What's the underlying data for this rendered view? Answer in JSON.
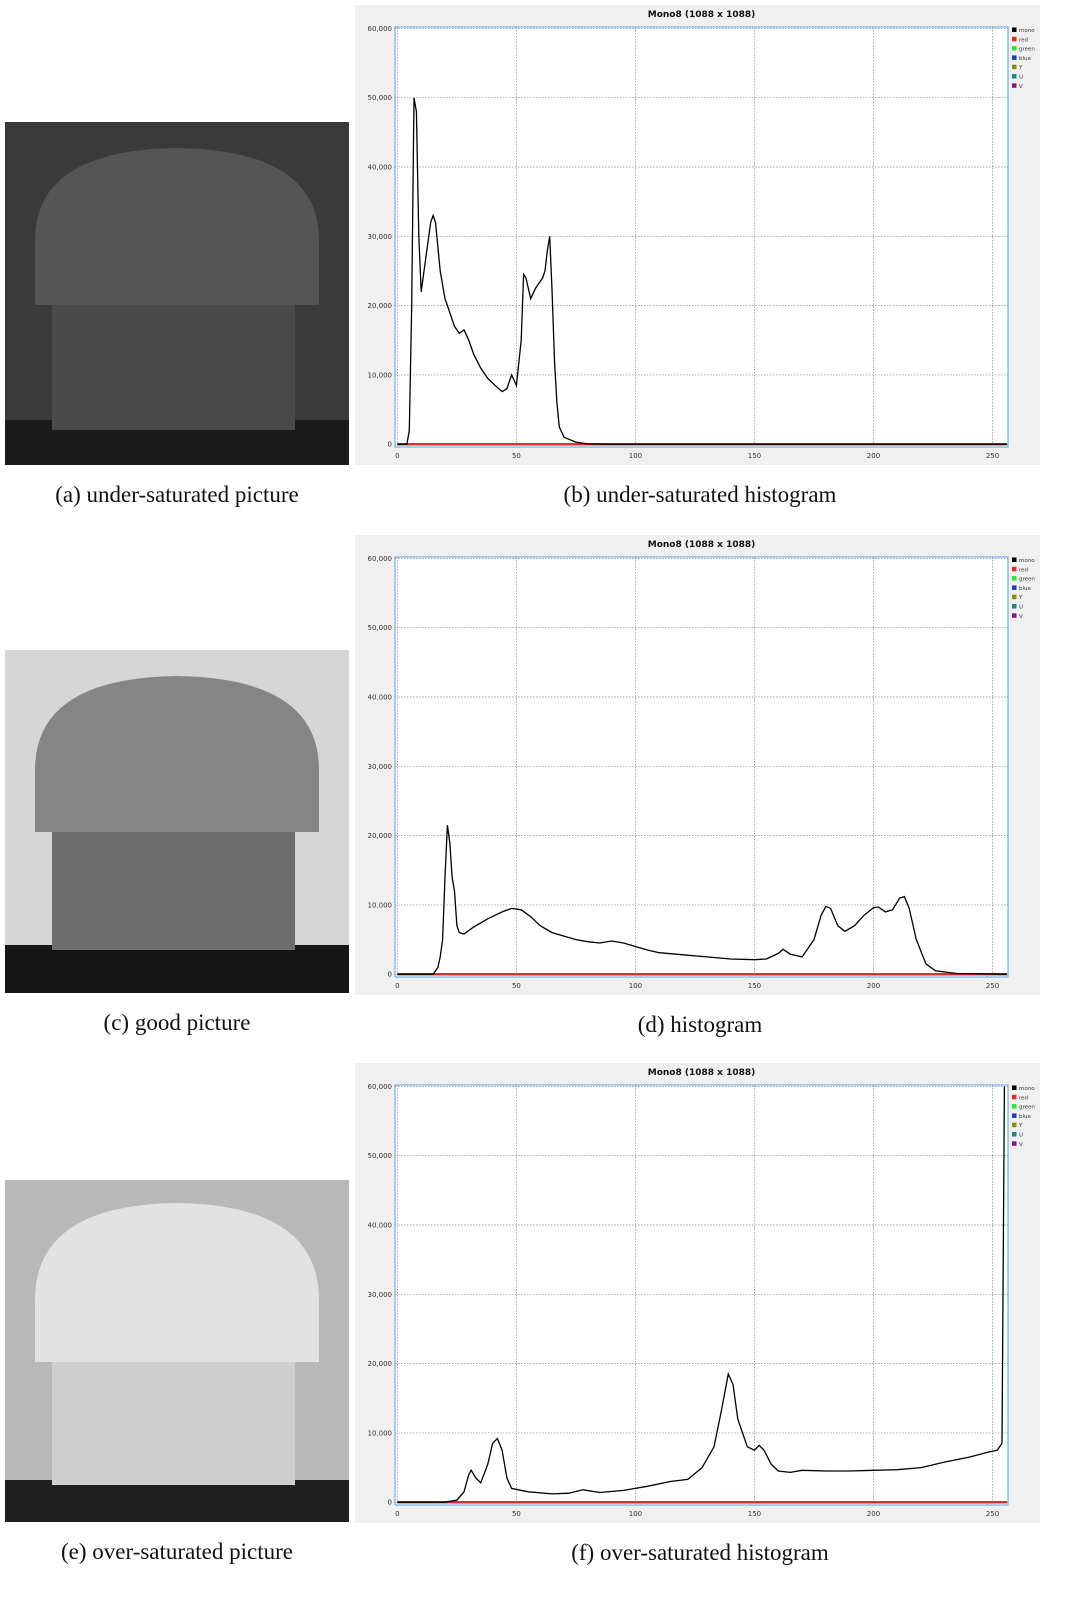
{
  "figure": {
    "captions": [
      "(a) under-saturated picture",
      "(c) good picture",
      "(e) over-saturated picture"
    ]
  },
  "chart_data": [
    {
      "type": "line",
      "title": "Mono8 (1088 x 1088)",
      "caption": "(b) under-saturated histogram",
      "xlim": [
        -1,
        256.5
      ],
      "ylim": [
        -400,
        60200
      ],
      "grid": true,
      "legend": "right",
      "xticks": [
        0,
        50,
        100,
        150,
        200,
        250
      ],
      "yticks": [
        0,
        {
          "value": 10000,
          "label": "10,000"
        },
        {
          "value": 20000,
          "label": "20,000"
        },
        {
          "value": 30000,
          "label": "30,000"
        },
        {
          "value": 40000,
          "label": "40,000"
        },
        {
          "value": 50000,
          "label": "50,000"
        },
        {
          "value": 60000,
          "label": "60,000"
        }
      ],
      "series": [
        {
          "name": "mono",
          "color": "#000000",
          "x": [
            0,
            4,
            5,
            6,
            7,
            8,
            9,
            10,
            12,
            14,
            15,
            16,
            18,
            20,
            22,
            24,
            26,
            28,
            30,
            32,
            35,
            38,
            41,
            44,
            46,
            48,
            50,
            52,
            53,
            54,
            56,
            58,
            61,
            62,
            63,
            64,
            65,
            66,
            67,
            68,
            70,
            75,
            80,
            90,
            256
          ],
          "values": [
            0,
            0,
            2000,
            20000,
            50000,
            48000,
            30000,
            22000,
            27000,
            32000,
            33000,
            32000,
            25000,
            21000,
            19000,
            17000,
            16000,
            16500,
            15000,
            13000,
            11000,
            9500,
            8500,
            7600,
            8000,
            10000,
            8500,
            15000,
            24500,
            24000,
            21000,
            22500,
            24000,
            25000,
            28000,
            30000,
            22000,
            12000,
            6000,
            2500,
            1000,
            300,
            50,
            0,
            0
          ]
        },
        {
          "name": "red",
          "color": "#e8262a",
          "x": [
            0,
            256
          ],
          "values": [
            0,
            0
          ]
        },
        {
          "name": "green",
          "color": "#2ee82e",
          "x": [
            0,
            256
          ],
          "values": [
            0,
            0
          ]
        },
        {
          "name": "blue",
          "color": "#1b3fb0",
          "x": [
            0,
            256
          ],
          "values": [
            0,
            0
          ]
        },
        {
          "name": "Y",
          "color": "#8a8a16",
          "x": [
            0,
            256
          ],
          "values": [
            0,
            0
          ]
        },
        {
          "name": "U",
          "color": "#1a8a8a",
          "x": [
            0,
            256
          ],
          "values": [
            0,
            0
          ]
        },
        {
          "name": "V",
          "color": "#8a1a8a",
          "x": [
            0,
            256
          ],
          "values": [
            0,
            0
          ]
        }
      ]
    },
    {
      "type": "line",
      "title": "Mono8 (1088 x 1088)",
      "caption": "(d) histogram",
      "xlim": [
        -1,
        256.5
      ],
      "ylim": [
        -400,
        60200
      ],
      "grid": true,
      "legend": "right",
      "xticks": [
        0,
        50,
        100,
        150,
        200,
        250
      ],
      "yticks": [
        0,
        {
          "value": 10000,
          "label": "10,000"
        },
        {
          "value": 20000,
          "label": "20,000"
        },
        {
          "value": 30000,
          "label": "30,000"
        },
        {
          "value": 40000,
          "label": "40,000"
        },
        {
          "value": 50000,
          "label": "50,000"
        },
        {
          "value": 60000,
          "label": "60,000"
        }
      ],
      "series": [
        {
          "name": "mono",
          "color": "#000000",
          "x": [
            0,
            15,
            17,
            18,
            19,
            20,
            21,
            22,
            23,
            24,
            25,
            26,
            28,
            32,
            38,
            44,
            48,
            52,
            56,
            60,
            65,
            70,
            75,
            80,
            85,
            90,
            95,
            100,
            105,
            110,
            120,
            130,
            140,
            150,
            155,
            160,
            162,
            165,
            170,
            175,
            178,
            180,
            182,
            185,
            188,
            192,
            196,
            200,
            202,
            205,
            208,
            211,
            213,
            215,
            218,
            222,
            226,
            235,
            256
          ],
          "values": [
            0,
            0,
            1000,
            2500,
            5000,
            14000,
            21500,
            19000,
            14000,
            12000,
            7000,
            6000,
            5800,
            6800,
            8000,
            9000,
            9500,
            9300,
            8300,
            7000,
            6000,
            5500,
            5000,
            4700,
            4500,
            4800,
            4500,
            4000,
            3500,
            3100,
            2800,
            2500,
            2200,
            2100,
            2200,
            3000,
            3600,
            2900,
            2500,
            5000,
            8500,
            9800,
            9500,
            7000,
            6200,
            7000,
            8500,
            9600,
            9700,
            9000,
            9300,
            11000,
            11200,
            9500,
            5000,
            1500,
            500,
            100,
            0
          ]
        },
        {
          "name": "red",
          "color": "#e8262a",
          "x": [
            0,
            256
          ],
          "values": [
            0,
            0
          ]
        },
        {
          "name": "green",
          "color": "#2ee82e",
          "x": [
            0,
            256
          ],
          "values": [
            0,
            0
          ]
        },
        {
          "name": "blue",
          "color": "#1b3fb0",
          "x": [
            0,
            256
          ],
          "values": [
            0,
            0
          ]
        },
        {
          "name": "Y",
          "color": "#8a8a16",
          "x": [
            0,
            256
          ],
          "values": [
            0,
            0
          ]
        },
        {
          "name": "U",
          "color": "#1a8a8a",
          "x": [
            0,
            256
          ],
          "values": [
            0,
            0
          ]
        },
        {
          "name": "V",
          "color": "#8a1a8a",
          "x": [
            0,
            256
          ],
          "values": [
            0,
            0
          ]
        }
      ]
    },
    {
      "type": "line",
      "title": "Mono8 (1088 x 1088)",
      "caption": "(f) over-saturated histogram",
      "xlim": [
        -1,
        256.5
      ],
      "ylim": [
        -400,
        60200
      ],
      "grid": true,
      "legend": "right",
      "xticks": [
        0,
        50,
        100,
        150,
        200,
        250
      ],
      "yticks": [
        0,
        {
          "value": 10000,
          "label": "10,000"
        },
        {
          "value": 20000,
          "label": "20,000"
        },
        {
          "value": 30000,
          "label": "30,000"
        },
        {
          "value": 40000,
          "label": "40,000"
        },
        {
          "value": 50000,
          "label": "50,000"
        },
        {
          "value": 60000,
          "label": "60,000"
        }
      ],
      "series": [
        {
          "name": "mono",
          "color": "#000000",
          "x": [
            0,
            20,
            25,
            28,
            30,
            31,
            33,
            35,
            38,
            40,
            42,
            44,
            46,
            48,
            55,
            65,
            72,
            78,
            85,
            95,
            105,
            115,
            122,
            128,
            133,
            136,
            139,
            141,
            143,
            147,
            150,
            152,
            154,
            157,
            160,
            165,
            170,
            180,
            190,
            200,
            210,
            220,
            230,
            240,
            248,
            252,
            254,
            255
          ],
          "values": [
            0,
            0,
            300,
            1500,
            4000,
            4600,
            3500,
            2800,
            5500,
            8500,
            9200,
            7500,
            3500,
            2000,
            1500,
            1200,
            1300,
            1800,
            1400,
            1700,
            2300,
            3000,
            3300,
            5000,
            8000,
            13000,
            18500,
            17000,
            12000,
            8000,
            7500,
            8200,
            7500,
            5500,
            4500,
            4300,
            4600,
            4500,
            4500,
            4600,
            4700,
            5000,
            5800,
            6500,
            7200,
            7500,
            8500,
            60000
          ]
        },
        {
          "name": "red",
          "color": "#e8262a",
          "x": [
            0,
            256
          ],
          "values": [
            0,
            0
          ]
        },
        {
          "name": "green",
          "color": "#2ee82e",
          "x": [
            0,
            256
          ],
          "values": [
            0,
            0
          ]
        },
        {
          "name": "blue",
          "color": "#1b3fb0",
          "x": [
            0,
            256
          ],
          "values": [
            0,
            0
          ]
        },
        {
          "name": "Y",
          "color": "#8a8a16",
          "x": [
            0,
            256
          ],
          "values": [
            0,
            0
          ]
        },
        {
          "name": "U",
          "color": "#1a8a8a",
          "x": [
            0,
            256
          ],
          "values": [
            0,
            0
          ]
        },
        {
          "name": "V",
          "color": "#8a1a8a",
          "x": [
            0,
            256
          ],
          "values": [
            0,
            0
          ]
        }
      ]
    }
  ]
}
